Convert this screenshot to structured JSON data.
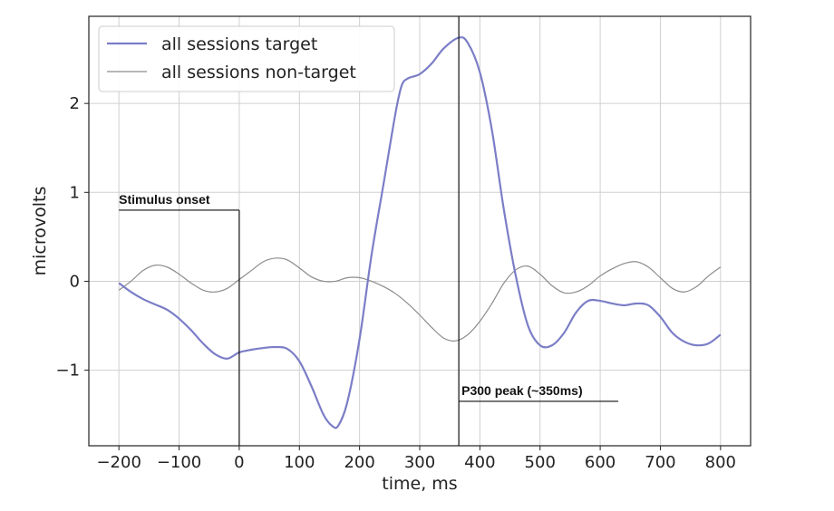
{
  "chart_data": {
    "type": "line",
    "xlabel": "time, ms",
    "ylabel": "microvolts",
    "xlim": [
      -250,
      850
    ],
    "ylim": [
      -1.85,
      2.98
    ],
    "xticks": [
      -200,
      -100,
      0,
      100,
      200,
      300,
      400,
      500,
      600,
      700,
      800
    ],
    "yticks": [
      -1,
      0,
      1,
      2
    ],
    "xtick_labels": [
      "−200",
      "−100",
      "0",
      "100",
      "200",
      "300",
      "400",
      "500",
      "600",
      "700",
      "800"
    ],
    "ytick_labels": [
      "−1",
      "0",
      "1",
      "2"
    ],
    "grid": true,
    "legend_position": "top-left",
    "series": [
      {
        "name": "all sessions target",
        "color": "#7b7ec6",
        "points": [
          [
            -200,
            -0.02
          ],
          [
            -180,
            -0.12
          ],
          [
            -160,
            -0.2
          ],
          [
            -140,
            -0.26
          ],
          [
            -120,
            -0.32
          ],
          [
            -100,
            -0.42
          ],
          [
            -80,
            -0.55
          ],
          [
            -60,
            -0.7
          ],
          [
            -40,
            -0.82
          ],
          [
            -20,
            -0.87
          ],
          [
            0,
            -0.8
          ],
          [
            20,
            -0.77
          ],
          [
            40,
            -0.75
          ],
          [
            60,
            -0.74
          ],
          [
            80,
            -0.76
          ],
          [
            100,
            -0.9
          ],
          [
            120,
            -1.18
          ],
          [
            140,
            -1.5
          ],
          [
            155,
            -1.63
          ],
          [
            165,
            -1.62
          ],
          [
            180,
            -1.35
          ],
          [
            200,
            -0.65
          ],
          [
            220,
            0.3
          ],
          [
            240,
            1.1
          ],
          [
            260,
            1.9
          ],
          [
            270,
            2.2
          ],
          [
            280,
            2.28
          ],
          [
            300,
            2.33
          ],
          [
            320,
            2.45
          ],
          [
            340,
            2.62
          ],
          [
            365,
            2.74
          ],
          [
            380,
            2.68
          ],
          [
            400,
            2.35
          ],
          [
            420,
            1.7
          ],
          [
            440,
            0.8
          ],
          [
            460,
            0.05
          ],
          [
            480,
            -0.5
          ],
          [
            500,
            -0.72
          ],
          [
            520,
            -0.72
          ],
          [
            540,
            -0.58
          ],
          [
            560,
            -0.35
          ],
          [
            580,
            -0.22
          ],
          [
            600,
            -0.22
          ],
          [
            620,
            -0.25
          ],
          [
            640,
            -0.27
          ],
          [
            660,
            -0.25
          ],
          [
            680,
            -0.27
          ],
          [
            700,
            -0.4
          ],
          [
            720,
            -0.58
          ],
          [
            740,
            -0.68
          ],
          [
            760,
            -0.72
          ],
          [
            780,
            -0.7
          ],
          [
            800,
            -0.6
          ]
        ]
      },
      {
        "name": "all sessions non-target",
        "color": "#8c8c8c",
        "points": [
          [
            -200,
            -0.1
          ],
          [
            -180,
            0.0
          ],
          [
            -160,
            0.12
          ],
          [
            -140,
            0.18
          ],
          [
            -120,
            0.16
          ],
          [
            -100,
            0.08
          ],
          [
            -80,
            -0.02
          ],
          [
            -60,
            -0.1
          ],
          [
            -40,
            -0.12
          ],
          [
            -20,
            -0.08
          ],
          [
            0,
            0.02
          ],
          [
            20,
            0.12
          ],
          [
            40,
            0.22
          ],
          [
            60,
            0.26
          ],
          [
            80,
            0.24
          ],
          [
            100,
            0.15
          ],
          [
            120,
            0.05
          ],
          [
            140,
            0.0
          ],
          [
            160,
            0.0
          ],
          [
            180,
            0.04
          ],
          [
            200,
            0.04
          ],
          [
            220,
            0.0
          ],
          [
            240,
            -0.06
          ],
          [
            260,
            -0.14
          ],
          [
            280,
            -0.25
          ],
          [
            300,
            -0.38
          ],
          [
            320,
            -0.52
          ],
          [
            340,
            -0.64
          ],
          [
            360,
            -0.67
          ],
          [
            380,
            -0.6
          ],
          [
            400,
            -0.45
          ],
          [
            420,
            -0.25
          ],
          [
            440,
            -0.02
          ],
          [
            460,
            0.13
          ],
          [
            480,
            0.17
          ],
          [
            500,
            0.08
          ],
          [
            520,
            -0.05
          ],
          [
            540,
            -0.13
          ],
          [
            560,
            -0.12
          ],
          [
            580,
            -0.05
          ],
          [
            600,
            0.06
          ],
          [
            620,
            0.14
          ],
          [
            640,
            0.2
          ],
          [
            660,
            0.22
          ],
          [
            680,
            0.16
          ],
          [
            700,
            0.04
          ],
          [
            720,
            -0.08
          ],
          [
            740,
            -0.12
          ],
          [
            760,
            -0.06
          ],
          [
            780,
            0.06
          ],
          [
            800,
            0.16
          ]
        ]
      }
    ],
    "annotations": [
      {
        "id": "onset",
        "text": "Stimulus onset",
        "x": 0,
        "label_x_start": -200,
        "label_y": 0.8
      },
      {
        "id": "p300",
        "text": "P300 peak (~350ms)",
        "x": 365,
        "label_x_end": 630,
        "label_y": -1.35
      }
    ]
  }
}
